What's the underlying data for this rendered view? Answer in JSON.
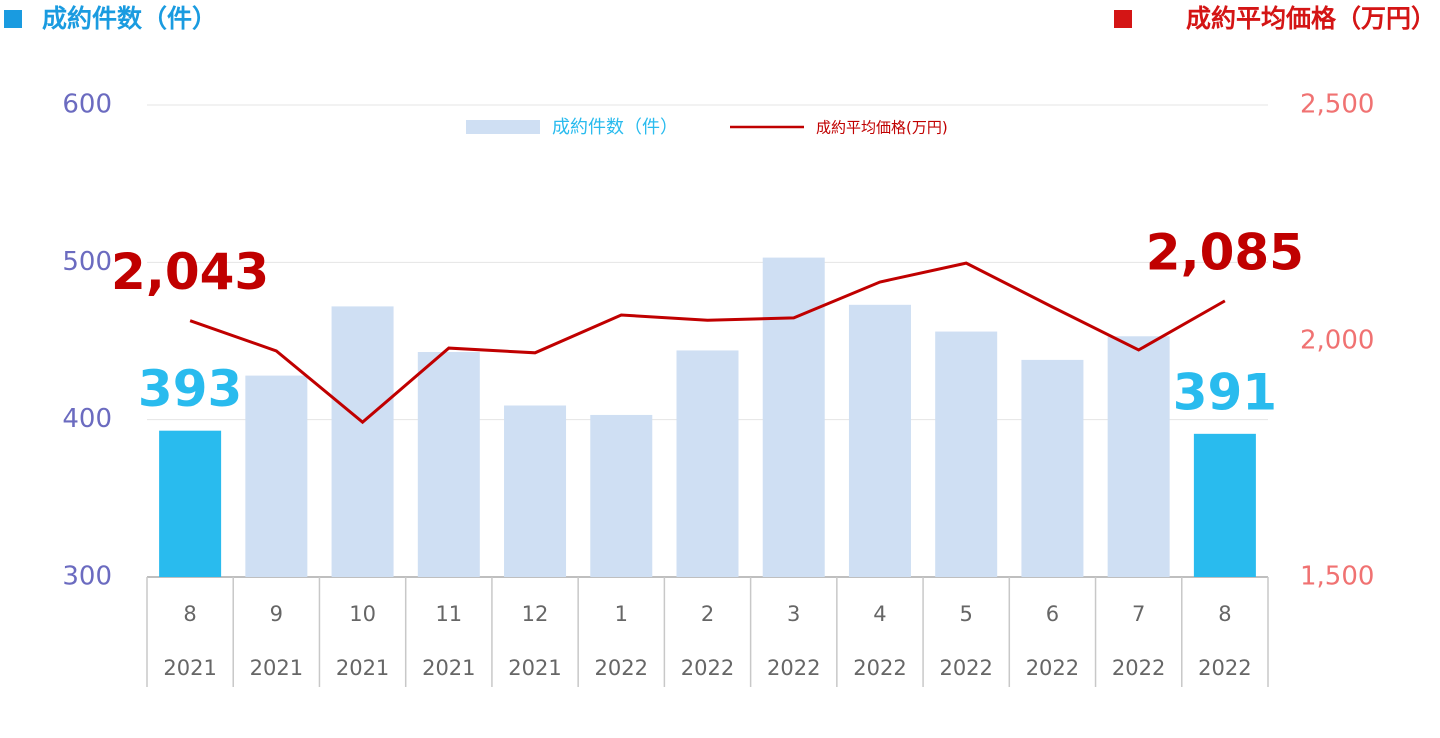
{
  "chart_data": {
    "type": "bar_line",
    "y_title": "成約件数（件）",
    "y2_title": "成約平均価格（万円）",
    "y_title_color": "#1a9be0",
    "y2_title_color": "#d41515",
    "categories": [
      "8",
      "9",
      "10",
      "11",
      "12",
      "1",
      "2",
      "3",
      "4",
      "5",
      "6",
      "7",
      "8"
    ],
    "category_years": [
      "2021",
      "2021",
      "2021",
      "2021",
      "2021",
      "2022",
      "2022",
      "2022",
      "2022",
      "2022",
      "2022",
      "2022",
      "2022"
    ],
    "series": [
      {
        "name": "成約件数（件）",
        "type": "bar",
        "color": "#cfdff3",
        "legend_color": "#29bbee",
        "colors": [
          "#29bbee",
          "#cfdff3",
          "#cfdff3",
          "#cfdff3",
          "#cfdff3",
          "#cfdff3",
          "#cfdff3",
          "#cfdff3",
          "#cfdff3",
          "#cfdff3",
          "#cfdff3",
          "#cfdff3",
          "#29bbee"
        ],
        "values": [
          393,
          428,
          472,
          443,
          409,
          403,
          444,
          503,
          473,
          456,
          438,
          453,
          391
        ],
        "value_labels": [
          "393",
          null,
          null,
          null,
          null,
          null,
          null,
          null,
          null,
          null,
          null,
          null,
          "391"
        ]
      },
      {
        "name": "成約平均価格(万円)",
        "type": "line",
        "axis": "y2",
        "color": "#c00000",
        "legend_color": "#c00000",
        "values": [
          2043,
          1979,
          1828,
          1985,
          1975,
          2055,
          2044,
          2049,
          2125,
          2165,
          2072,
          1981,
          2085
        ],
        "value_labels": [
          "2,043",
          null,
          null,
          null,
          null,
          null,
          null,
          null,
          null,
          null,
          null,
          null,
          "2,085"
        ]
      }
    ],
    "ylim": [
      300,
      600
    ],
    "yticks": [
      300,
      400,
      500,
      600
    ],
    "ytick_color": "#6b6bc0",
    "y2lim": [
      1500,
      2500
    ],
    "y2ticks": [
      {
        "value": 1500,
        "label": "1,500"
      },
      {
        "value": 2000,
        "label": "2,000"
      },
      {
        "value": 2500,
        "label": "2,500"
      }
    ],
    "y2tick_color": "#f07272",
    "grid": true
  }
}
